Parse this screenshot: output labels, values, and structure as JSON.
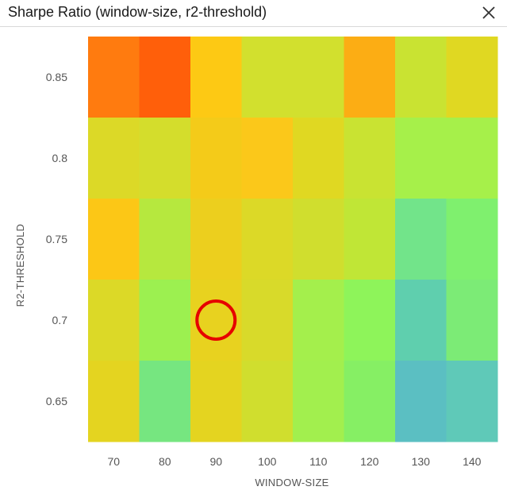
{
  "window": {
    "title": "Sharpe Ratio (window-size, r2-threshold)",
    "close_icon": "close-icon"
  },
  "marker": {
    "color": "#e60000",
    "cell": {
      "x": "90",
      "y": "0.7"
    }
  },
  "chart_data": {
    "type": "heatmap",
    "title": "Sharpe Ratio (window-size, r2-threshold)",
    "xlabel": "WINDOW-SIZE",
    "ylabel": "R2-THRESHOLD",
    "x": [
      "70",
      "80",
      "90",
      "100",
      "110",
      "120",
      "130",
      "140"
    ],
    "y": [
      "0.85",
      "0.8",
      "0.75",
      "0.7",
      "0.65"
    ],
    "cell_colors": [
      [
        "#ff7b0f",
        "#ff5f0a",
        "#fdc914",
        "#d2e02e",
        "#d2e02e",
        "#fcad14",
        "#c9e332",
        "#e0d822"
      ],
      [
        "#dcd927",
        "#d4dd2c",
        "#f4cb19",
        "#fbc81a",
        "#e0d822",
        "#c9e332",
        "#a6f04a",
        "#a6f04a"
      ],
      [
        "#fcc716",
        "#b6e83e",
        "#eccf1e",
        "#dcd927",
        "#d0de2e",
        "#c0e636",
        "#72e48a",
        "#7ff06e"
      ],
      [
        "#dcd927",
        "#9cf050",
        "#e8d21f",
        "#d8da2a",
        "#a4ef4c",
        "#8ef45a",
        "#5fcfae",
        "#7ceb76"
      ],
      [
        "#e4d420",
        "#76e680",
        "#e4d420",
        "#d0de2e",
        "#a2ef4e",
        "#86ef64",
        "#5bbfc2",
        "#5fc9b8"
      ]
    ]
  }
}
